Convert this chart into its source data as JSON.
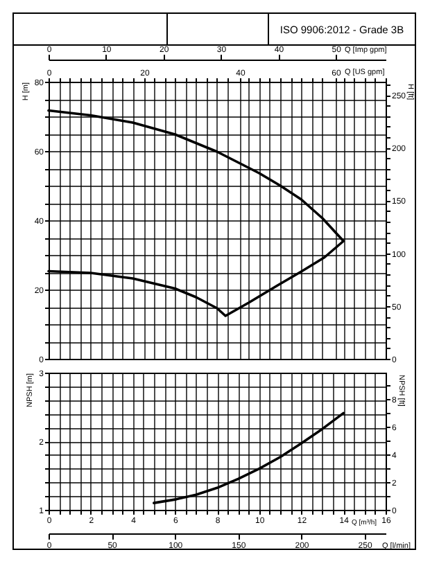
{
  "chart_data": [
    {
      "type": "line",
      "title": "ISO 9906:2012 - Grade 3B",
      "xlabel": "Q [US gpm]",
      "xlim": [
        0,
        70.45
      ],
      "xticks": [
        0,
        {
          "value": 2.2,
          "label": null
        },
        {
          "value": 4.4,
          "label": null
        },
        {
          "value": 6.6,
          "label": null
        },
        {
          "value": 8.81,
          "label": null
        },
        {
          "value": 11.01,
          "label": null
        },
        {
          "value": 13.21,
          "label": null
        },
        {
          "value": 15.41,
          "label": null
        },
        {
          "value": 17.61,
          "label": null
        },
        20,
        {
          "value": 22.01,
          "label": null
        },
        {
          "value": 24.22,
          "label": null
        },
        {
          "value": 26.42,
          "label": null
        },
        {
          "value": 28.62,
          "label": null
        },
        {
          "value": 30.82,
          "label": null
        },
        {
          "value": 33.02,
          "label": null
        },
        {
          "value": 35.22,
          "label": null
        },
        {
          "value": 37.42,
          "label": null
        },
        40,
        {
          "value": 41.83,
          "label": null
        },
        {
          "value": 44.03,
          "label": null
        },
        {
          "value": 46.23,
          "label": null
        },
        {
          "value": 48.43,
          "label": null
        },
        {
          "value": 50.63,
          "label": null
        },
        {
          "value": 52.83,
          "label": null
        },
        {
          "value": 55.04,
          "label": null
        },
        {
          "value": 57.24,
          "label": null
        },
        60,
        {
          "value": 61.64,
          "label": null
        },
        {
          "value": 63.84,
          "label": null
        },
        {
          "value": 66.04,
          "label": null
        },
        {
          "value": 68.24,
          "label": null
        },
        {
          "value": 70.45,
          "label": null
        }
      ],
      "x2label": "Q [Imp gpm]",
      "x2lim": [
        0,
        58.66
      ],
      "x2ticks": [
        0,
        10,
        20,
        30,
        40,
        50
      ],
      "ylabel": "H [m]",
      "ylim": [
        0,
        80
      ],
      "yticks": [
        0,
        {
          "value": 5,
          "label": null
        },
        {
          "value": 10,
          "label": null
        },
        {
          "value": 15,
          "label": null
        },
        20,
        {
          "value": 25,
          "label": null
        },
        {
          "value": 30,
          "label": null
        },
        {
          "value": 35,
          "label": null
        },
        40,
        {
          "value": 45,
          "label": null
        },
        {
          "value": 50,
          "label": null
        },
        {
          "value": 55,
          "label": null
        },
        60,
        {
          "value": 65,
          "label": null
        },
        {
          "value": 70,
          "label": null
        },
        {
          "value": 75,
          "label": null
        },
        80
      ],
      "y2label": "H [ft]",
      "y2lim": [
        0,
        262.47
      ],
      "y2ticks": [
        0,
        {
          "value": 10,
          "label": null
        },
        {
          "value": 20,
          "label": null
        },
        {
          "value": 30,
          "label": null
        },
        {
          "value": 40,
          "label": null
        },
        50,
        {
          "value": 60,
          "label": null
        },
        {
          "value": 70,
          "label": null
        },
        {
          "value": 80,
          "label": null
        },
        {
          "value": 90,
          "label": null
        },
        100,
        {
          "value": 110,
          "label": null
        },
        {
          "value": 120,
          "label": null
        },
        {
          "value": 130,
          "label": null
        },
        {
          "value": 140,
          "label": null
        },
        150,
        {
          "value": 160,
          "label": null
        },
        {
          "value": 170,
          "label": null
        },
        {
          "value": 180,
          "label": null
        },
        {
          "value": 190,
          "label": null
        },
        200,
        {
          "value": 210,
          "label": null
        },
        {
          "value": 220,
          "label": null
        },
        {
          "value": 230,
          "label": null
        },
        {
          "value": 240,
          "label": null
        },
        250,
        {
          "value": 260,
          "label": null
        }
      ],
      "grid": true,
      "series": [
        {
          "color": "#000000",
          "x": [
            0,
            8.81,
            17.61,
            26.42,
            35.22,
            44.03,
            48.43,
            52.83,
            57.24,
            61.64
          ],
          "values": [
            71.7,
            70.3,
            68.2,
            64.8,
            59.8,
            53.6,
            50,
            46,
            40.6,
            34
          ]
        },
        {
          "color": "#000000",
          "x": [
            0,
            8.81,
            17.61,
            26.42,
            30.82,
            35.22,
            36.98,
            41.83,
            47.99,
            52.83,
            57.68,
            61.64
          ],
          "values": [
            25.3,
            24.8,
            23.2,
            20.3,
            17.8,
            14.6,
            12.4,
            16.2,
            21.3,
            25.2,
            29.3,
            34
          ]
        }
      ]
    },
    {
      "type": "line",
      "xlabel": "Q [m³/h]",
      "xlim": [
        0,
        16
      ],
      "xticks": [
        0,
        {
          "value": 0.5,
          "label": null
        },
        {
          "value": 1,
          "label": null
        },
        {
          "value": 1.5,
          "label": null
        },
        2,
        {
          "value": 2.5,
          "label": null
        },
        {
          "value": 3,
          "label": null
        },
        {
          "value": 3.5,
          "label": null
        },
        4,
        {
          "value": 4.5,
          "label": null
        },
        {
          "value": 5,
          "label": null
        },
        {
          "value": 5.5,
          "label": null
        },
        6,
        {
          "value": 6.5,
          "label": null
        },
        {
          "value": 7,
          "label": null
        },
        {
          "value": 7.5,
          "label": null
        },
        8,
        {
          "value": 8.5,
          "label": null
        },
        {
          "value": 9,
          "label": null
        },
        {
          "value": 9.5,
          "label": null
        },
        10,
        {
          "value": 10.5,
          "label": null
        },
        {
          "value": 11,
          "label": null
        },
        {
          "value": 11.5,
          "label": null
        },
        12,
        {
          "value": 12.5,
          "label": null
        },
        {
          "value": 13,
          "label": null
        },
        {
          "value": 13.5,
          "label": null
        },
        14,
        {
          "value": 14.5,
          "label": null
        },
        {
          "value": 15,
          "label": null
        },
        {
          "value": 15.5,
          "label": null
        },
        16
      ],
      "x2label": "Q [l/min]",
      "x2lim": [
        0,
        266.67
      ],
      "x2ticks": [
        0,
        50,
        100,
        150,
        200,
        250
      ],
      "ylabel": "NPSH [m]",
      "ylim": [
        1,
        3
      ],
      "yticks": [
        1,
        {
          "value": 1.2,
          "label": null
        },
        {
          "value": 1.4,
          "label": null
        },
        {
          "value": 1.6,
          "label": null
        },
        {
          "value": 1.8,
          "label": null
        },
        2,
        {
          "value": 2.2,
          "label": null
        },
        {
          "value": 2.4,
          "label": null
        },
        {
          "value": 2.6,
          "label": null
        },
        {
          "value": 2.8,
          "label": null
        },
        3
      ],
      "y2label": "NPSH [ft]",
      "y2lim": [
        0,
        9.9
      ],
      "y2ticks": [
        0,
        {
          "value": 1,
          "label": null
        },
        2,
        {
          "value": 3,
          "label": null
        },
        4,
        {
          "value": 5,
          "label": null
        },
        6,
        {
          "value": 7,
          "label": null
        },
        8,
        {
          "value": 9,
          "label": null
        }
      ],
      "grid": true,
      "series": [
        {
          "color": "#000000",
          "x": [
            5,
            6,
            7,
            8,
            9,
            10,
            11,
            12,
            13,
            14
          ],
          "values": [
            1.1,
            1.15,
            1.22,
            1.32,
            1.45,
            1.6,
            1.77,
            1.97,
            2.18,
            2.41
          ]
        }
      ]
    }
  ]
}
